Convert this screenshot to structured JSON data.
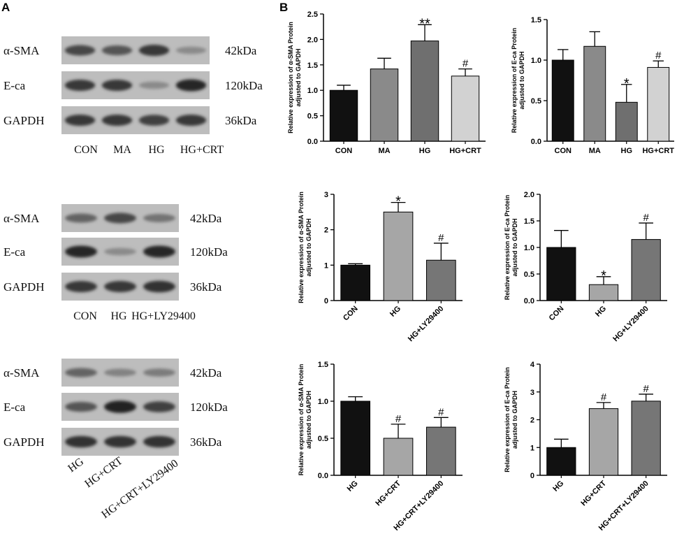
{
  "panels": {
    "a": "A",
    "b": "B"
  },
  "blots": [
    {
      "rows": [
        {
          "label": "α-SMA",
          "size": "42kDa",
          "intensity": [
            0.7,
            0.6,
            0.8,
            0.25
          ]
        },
        {
          "label": "E-ca",
          "size": "120kDa",
          "intensity": [
            0.8,
            0.8,
            0.25,
            0.9
          ]
        },
        {
          "label": "GAPDH",
          "size": "36kDa",
          "intensity": [
            0.8,
            0.8,
            0.75,
            0.8
          ]
        }
      ],
      "lanes": [
        "CON",
        "MA",
        "HG",
        "HG+CRT"
      ]
    },
    {
      "rows": [
        {
          "label": "α-SMA",
          "size": "42kDa",
          "intensity": [
            0.5,
            0.7,
            0.4
          ]
        },
        {
          "label": "E-ca",
          "size": "120kDa",
          "intensity": [
            0.9,
            0.25,
            0.9
          ]
        },
        {
          "label": "GAPDH",
          "size": "36kDa",
          "intensity": [
            0.8,
            0.8,
            0.85
          ]
        }
      ],
      "lanes": [
        "CON",
        "HG",
        "HG+LY29400"
      ]
    },
    {
      "rows": [
        {
          "label": "α-SMA",
          "size": "42kDa",
          "intensity": [
            0.5,
            0.3,
            0.35
          ]
        },
        {
          "label": "E-ca",
          "size": "120kDa",
          "intensity": [
            0.6,
            0.95,
            0.75
          ]
        },
        {
          "label": "GAPDH",
          "size": "36kDa",
          "intensity": [
            0.85,
            0.85,
            0.85
          ]
        }
      ],
      "lanes": [
        "HG",
        "HG+CRT",
        "HG+CRT+LY29400"
      ]
    }
  ],
  "chart_data": [
    {
      "type": "bar",
      "ylabel": [
        "Relative expression of  α-SMA Protein",
        "adjusted to GAPDH"
      ],
      "categories": [
        "CON",
        "MA",
        "HG",
        "HG+CRT"
      ],
      "values": [
        1.0,
        1.42,
        1.97,
        1.28
      ],
      "errors": [
        0.1,
        0.21,
        0.32,
        0.14
      ],
      "annotations": [
        "",
        "",
        "**",
        "#"
      ],
      "colors": [
        "#111111",
        "#8a8a8a",
        "#6f6f6f",
        "#d2d2d2"
      ],
      "ylim": [
        0,
        2.5
      ],
      "yticks": [
        0.0,
        0.5,
        1.0,
        1.5,
        2.0,
        2.5
      ],
      "rotate_labels": false
    },
    {
      "type": "bar",
      "ylabel": [
        "Relative expression of  E-ca Protein",
        "adjusted to GAPDH"
      ],
      "categories": [
        "CON",
        "MA",
        "HG",
        "HG+CRT"
      ],
      "values": [
        1.0,
        1.17,
        0.48,
        0.91
      ],
      "errors": [
        0.13,
        0.18,
        0.22,
        0.08
      ],
      "annotations": [
        "",
        "",
        "*",
        "#"
      ],
      "colors": [
        "#111111",
        "#8a8a8a",
        "#6f6f6f",
        "#d2d2d2"
      ],
      "ylim": [
        0,
        1.5
      ],
      "yticks": [
        0.0,
        0.5,
        1.0,
        1.5
      ],
      "rotate_labels": false
    },
    {
      "type": "bar",
      "ylabel": [
        "Relative expression of  α-SMA Protein",
        "adjusted to GAPDH"
      ],
      "categories": [
        "CON",
        "HG",
        "HG+LY29400"
      ],
      "values": [
        1.0,
        2.5,
        1.14
      ],
      "errors": [
        0.04,
        0.27,
        0.48
      ],
      "annotations": [
        "",
        "*",
        "#"
      ],
      "colors": [
        "#111111",
        "#a6a6a6",
        "#767676"
      ],
      "ylim": [
        0,
        3
      ],
      "yticks": [
        0,
        1,
        2,
        3
      ],
      "rotate_labels": true
    },
    {
      "type": "bar",
      "ylabel": [
        "Relative expression of  E-ca Protein",
        "adjusted to GAPDH"
      ],
      "categories": [
        "CON",
        "HG",
        "HG+LY29400"
      ],
      "values": [
        1.0,
        0.3,
        1.15
      ],
      "errors": [
        0.32,
        0.15,
        0.31
      ],
      "annotations": [
        "",
        "*",
        "#"
      ],
      "colors": [
        "#111111",
        "#a6a6a6",
        "#767676"
      ],
      "ylim": [
        0,
        2.0
      ],
      "yticks": [
        0.0,
        0.5,
        1.0,
        1.5,
        2.0
      ],
      "rotate_labels": true
    },
    {
      "type": "bar",
      "ylabel": [
        "Relative expression of  α-SMA Protein",
        "adjusted to GAPDH"
      ],
      "categories": [
        "HG",
        "HG+CRT",
        "HG+CRT+LY29400"
      ],
      "values": [
        1.0,
        0.5,
        0.65
      ],
      "errors": [
        0.06,
        0.19,
        0.13
      ],
      "annotations": [
        "",
        "#",
        "#"
      ],
      "colors": [
        "#111111",
        "#a6a6a6",
        "#767676"
      ],
      "ylim": [
        0,
        1.5
      ],
      "yticks": [
        0.0,
        0.5,
        1.0,
        1.5
      ],
      "rotate_labels": true
    },
    {
      "type": "bar",
      "ylabel": [
        "Relative expression of  E-ca Protein",
        "adjusted to GAPDH"
      ],
      "categories": [
        "HG",
        "HG+CRT",
        "HG+CRT+LY29400"
      ],
      "values": [
        1.0,
        2.4,
        2.67
      ],
      "errors": [
        0.3,
        0.22,
        0.25
      ],
      "annotations": [
        "",
        "#",
        "#"
      ],
      "colors": [
        "#111111",
        "#a6a6a6",
        "#767676"
      ],
      "ylim": [
        0,
        4
      ],
      "yticks": [
        0,
        1,
        2,
        3,
        4
      ],
      "rotate_labels": true
    }
  ]
}
